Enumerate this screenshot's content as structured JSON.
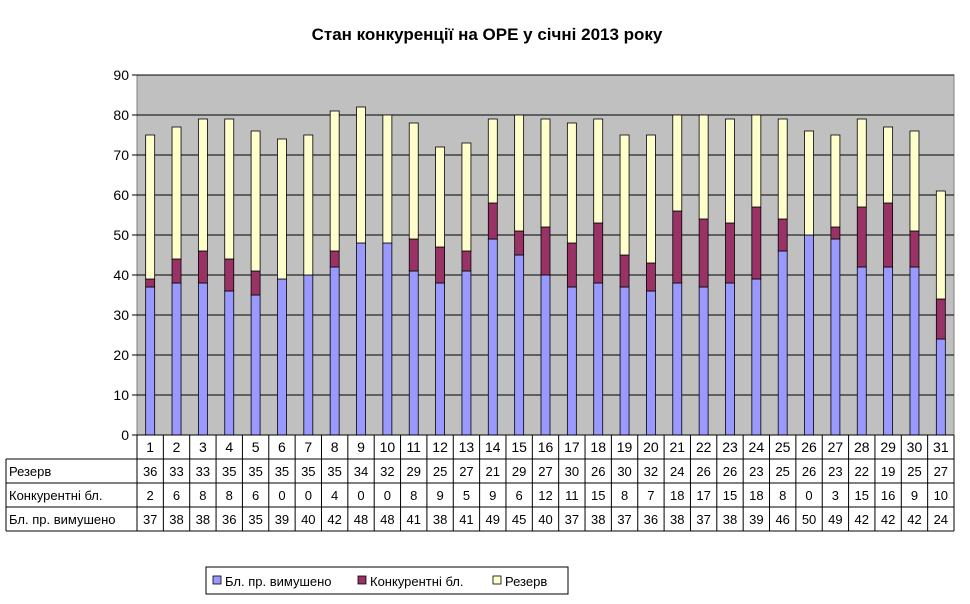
{
  "chart_data": {
    "type": "bar",
    "stacked": true,
    "title": "Стан конкуренції на ОРЕ  у січні 2013 року",
    "xlabel": "",
    "ylabel": "",
    "ylim": [
      0,
      90
    ],
    "yticks": [
      0,
      10,
      20,
      30,
      40,
      50,
      60,
      70,
      80,
      90
    ],
    "grid": true,
    "legend_position": "bottom",
    "plot_background": "#c0c0c0",
    "categories": [
      "1",
      "2",
      "3",
      "4",
      "5",
      "6",
      "7",
      "8",
      "9",
      "10",
      "11",
      "12",
      "13",
      "14",
      "15",
      "16",
      "17",
      "18",
      "19",
      "20",
      "21",
      "22",
      "23",
      "24",
      "25",
      "26",
      "27",
      "28",
      "29",
      "30",
      "31"
    ],
    "series": [
      {
        "name": "Бл. пр. вимушено",
        "color": "#9999ff",
        "values": [
          37,
          38,
          38,
          36,
          35,
          39,
          40,
          42,
          48,
          48,
          41,
          38,
          41,
          49,
          45,
          40,
          37,
          38,
          37,
          36,
          38,
          37,
          38,
          39,
          46,
          50,
          49,
          42,
          42,
          42,
          24
        ]
      },
      {
        "name": "Конкурентні бл.",
        "color": "#993366",
        "values": [
          2,
          6,
          8,
          8,
          6,
          0,
          0,
          4,
          0,
          0,
          8,
          9,
          5,
          9,
          6,
          12,
          11,
          15,
          8,
          7,
          18,
          17,
          15,
          18,
          8,
          0,
          3,
          15,
          16,
          9,
          10
        ]
      },
      {
        "name": "Резерв",
        "color": "#ffffcc",
        "values": [
          36,
          33,
          33,
          35,
          35,
          35,
          35,
          35,
          34,
          32,
          29,
          25,
          27,
          21,
          29,
          27,
          30,
          26,
          30,
          32,
          24,
          26,
          26,
          23,
          25,
          26,
          23,
          22,
          19,
          25,
          27
        ]
      }
    ],
    "table_rows": [
      "Резерв",
      "Конкурентні бл.",
      "Бл. пр. вимушено"
    ]
  }
}
